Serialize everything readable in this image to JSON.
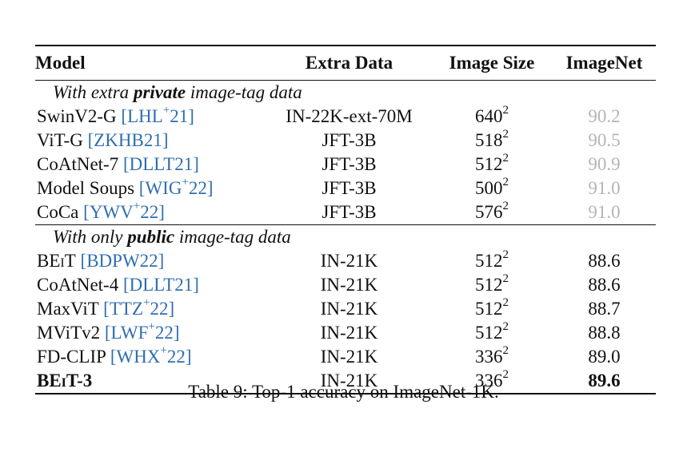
{
  "headers": [
    "Model",
    "Extra Data",
    "Image Size",
    "ImageNet"
  ],
  "sections": [
    {
      "title_pre": "With extra ",
      "title_bold": "private",
      "title_post": " image-tag data",
      "rows": [
        {
          "model": "SwinV2-G",
          "cite": "LHL",
          "cite_sup": "+",
          "cite_year": "21",
          "extra": "IN-22K-ext-70M",
          "size": "640",
          "exp": "2",
          "acc": "90.2"
        },
        {
          "model": "ViT-G",
          "cite": "ZKHB21",
          "cite_sup": "",
          "cite_year": "",
          "extra": "JFT-3B",
          "size": "518",
          "exp": "2",
          "acc": "90.5"
        },
        {
          "model": "CoAtNet-7",
          "cite": "DLLT21",
          "cite_sup": "",
          "cite_year": "",
          "extra": "JFT-3B",
          "size": "512",
          "exp": "2",
          "acc": "90.9"
        },
        {
          "model": "Model Soups",
          "cite": "WIG",
          "cite_sup": "+",
          "cite_year": "22",
          "extra": "JFT-3B",
          "size": "500",
          "exp": "2",
          "acc": "91.0"
        },
        {
          "model": "CoCa",
          "cite": "YWV",
          "cite_sup": "+",
          "cite_year": "22",
          "extra": "JFT-3B",
          "size": "576",
          "exp": "2",
          "acc": "91.0"
        }
      ]
    },
    {
      "title_pre": "With only ",
      "title_bold": "public",
      "title_post": " image-tag data",
      "rows": [
        {
          "model": "BEiT",
          "cite": "BDPW22",
          "cite_sup": "",
          "cite_year": "",
          "extra": "IN-21K",
          "size": "512",
          "exp": "2",
          "acc": "88.6"
        },
        {
          "model": "CoAtNet-4",
          "cite": "DLLT21",
          "cite_sup": "",
          "cite_year": "",
          "extra": "IN-21K",
          "size": "512",
          "exp": "2",
          "acc": "88.6"
        },
        {
          "model": "MaxViT",
          "cite": "TTZ",
          "cite_sup": "+",
          "cite_year": "22",
          "extra": "IN-21K",
          "size": "512",
          "exp": "2",
          "acc": "88.7"
        },
        {
          "model": "MViTv2",
          "cite": "LWF",
          "cite_sup": "+",
          "cite_year": "22",
          "extra": "IN-21K",
          "size": "512",
          "exp": "2",
          "acc": "88.8"
        },
        {
          "model": "FD-CLIP",
          "cite": "WHX",
          "cite_sup": "+",
          "cite_year": "22",
          "extra": "IN-21K",
          "size": "336",
          "exp": "2",
          "acc": "89.0"
        },
        {
          "model": "BEiT-3",
          "cite": "",
          "cite_sup": "",
          "cite_year": "",
          "extra": "IN-21K",
          "size": "336",
          "exp": "2",
          "acc": "89.6"
        }
      ]
    }
  ],
  "caption": "Table 9: Top-1 accuracy on ImageNet-1K."
}
